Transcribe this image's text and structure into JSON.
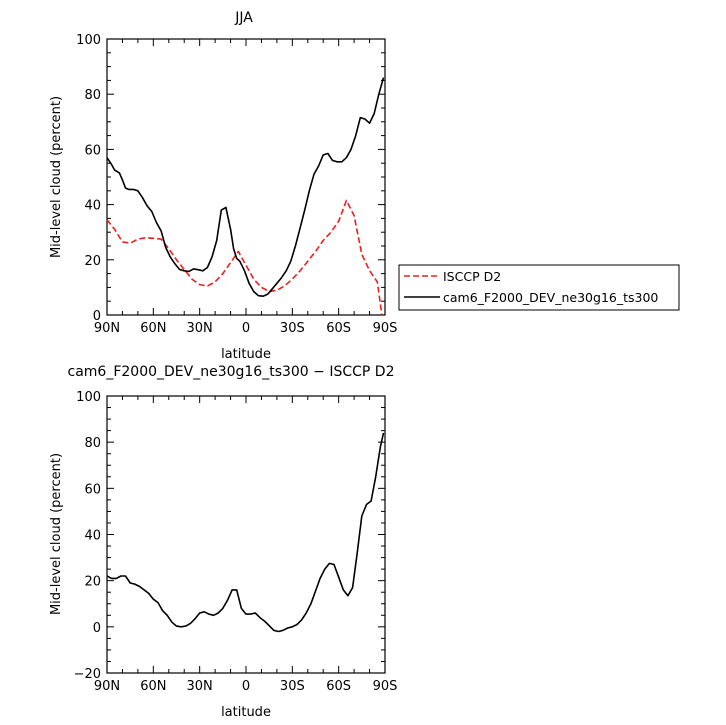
{
  "chart_data": [
    {
      "type": "line",
      "title": "JJA",
      "xlabel": "latitude",
      "ylabel": "Mid-level cloud (percent)",
      "xlim": [
        -90,
        90
      ],
      "ylim": [
        0,
        100
      ],
      "x_ticks": [
        -90,
        -60,
        -30,
        0,
        30,
        60,
        90
      ],
      "x_tick_labels": [
        "90N",
        "60N",
        "30N",
        "0",
        "30S",
        "60S",
        "90S"
      ],
      "y_ticks": [
        0,
        20,
        40,
        60,
        80,
        100
      ],
      "y_tick_labels": [
        "0",
        "20",
        "40",
        "60",
        "80",
        "100"
      ],
      "legend": "outside-right",
      "series": [
        {
          "name": "ISCCP D2",
          "color": "#e8201e",
          "dash": "dashed",
          "x": [
            -90,
            -85,
            -80,
            -75,
            -70,
            -65,
            -60,
            -55,
            -50,
            -45,
            -40,
            -35,
            -30,
            -25,
            -20,
            -15,
            -10,
            -5,
            0,
            5,
            10,
            15,
            20,
            25,
            30,
            35,
            40,
            45,
            50,
            55,
            60,
            65,
            70,
            75,
            80,
            85,
            88
          ],
          "y": [
            34.5,
            31,
            26.5,
            26,
            27.5,
            28,
            27.8,
            27.5,
            24,
            20,
            16.5,
            13,
            11,
            10.5,
            12,
            15,
            19,
            23,
            18,
            13,
            10,
            8.5,
            9,
            10.5,
            13,
            16,
            19.5,
            23,
            27,
            30,
            34,
            41.5,
            36,
            22,
            16,
            12,
            0
          ]
        },
        {
          "name": "cam6_F2000_DEV_ne30g16_ts300",
          "color": "#000000",
          "dash": "solid",
          "x": [
            -90,
            -87,
            -85,
            -82,
            -80,
            -78,
            -76,
            -73,
            -70,
            -67,
            -64,
            -61,
            -58,
            -55,
            -52,
            -49,
            -46,
            -43,
            -40,
            -37,
            -34,
            -31,
            -28,
            -25,
            -22,
            -19,
            -16,
            -13,
            -10,
            -8,
            -6,
            -4,
            -1,
            2,
            5,
            8,
            11,
            14,
            17,
            20,
            23,
            26,
            29,
            32,
            35,
            38,
            41,
            44,
            47,
            50,
            53,
            56,
            59,
            62,
            65,
            68,
            71,
            74,
            77,
            80,
            83,
            86,
            89
          ],
          "y": [
            57,
            54.5,
            52.5,
            51.5,
            49,
            46,
            45.5,
            45.5,
            45,
            42.5,
            39.5,
            37.5,
            33.5,
            30.5,
            24.5,
            21,
            18.5,
            16.5,
            16,
            15.8,
            16.7,
            16.4,
            16,
            17.2,
            21,
            27,
            38,
            39,
            31,
            24,
            20.5,
            19.5,
            16,
            11.5,
            8.5,
            7,
            6.8,
            7.5,
            9.5,
            11.5,
            13.5,
            16,
            19.5,
            25,
            31.5,
            38,
            45,
            51,
            54,
            58,
            58.5,
            56,
            55.5,
            55.5,
            57,
            60,
            65,
            71.5,
            71,
            69.5,
            73,
            80,
            86
          ]
        }
      ]
    },
    {
      "type": "line",
      "title": "cam6_F2000_DEV_ne30g16_ts300 − ISCCP D2",
      "xlabel": "latitude",
      "ylabel": "Mid-level cloud (percent)",
      "xlim": [
        -90,
        90
      ],
      "ylim": [
        -20,
        100
      ],
      "x_ticks": [
        -90,
        -60,
        -30,
        0,
        30,
        60,
        90
      ],
      "x_tick_labels": [
        "90N",
        "60N",
        "30N",
        "0",
        "30S",
        "60S",
        "90S"
      ],
      "y_ticks": [
        -20,
        0,
        20,
        40,
        60,
        80,
        100
      ],
      "y_tick_labels": [
        "−20",
        "0",
        "20",
        "40",
        "60",
        "80",
        "100"
      ],
      "series": [
        {
          "color": "#000000",
          "dash": "solid",
          "x": [
            -90,
            -87,
            -84,
            -81,
            -78,
            -75,
            -72,
            -69,
            -66,
            -63,
            -60,
            -57,
            -54,
            -51,
            -48,
            -45,
            -42,
            -39,
            -36,
            -33,
            -30,
            -27,
            -24,
            -21,
            -18,
            -15,
            -12,
            -9,
            -6,
            -3,
            0,
            3,
            6,
            9,
            12,
            15,
            18,
            21,
            24,
            27,
            30,
            33,
            36,
            39,
            42,
            45,
            48,
            51,
            54,
            57,
            60,
            63,
            66,
            69,
            72,
            75,
            78,
            81,
            84,
            87,
            89
          ],
          "y": [
            22,
            21,
            21,
            22,
            22,
            19,
            18.5,
            17.5,
            16,
            14.5,
            12,
            10.5,
            7,
            5,
            2,
            0.3,
            0,
            0.3,
            1.5,
            3.5,
            6,
            6.5,
            5.5,
            5,
            6,
            8,
            11.5,
            16,
            16,
            8,
            5.5,
            5.5,
            6,
            4,
            2.5,
            0.5,
            -1.5,
            -2,
            -1.5,
            -0.5,
            0,
            1,
            3,
            6,
            10,
            15.5,
            21,
            25,
            27.5,
            27,
            21.5,
            16,
            13.5,
            17,
            32,
            48,
            53,
            54.5,
            65,
            78,
            84
          ]
        }
      ]
    }
  ]
}
